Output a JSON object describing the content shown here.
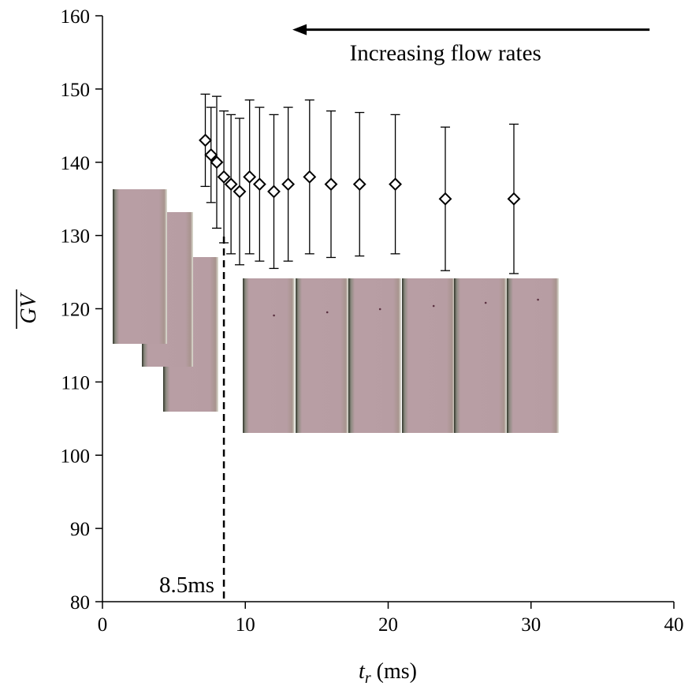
{
  "chart_data": {
    "type": "scatter",
    "x_label": {
      "symbol": "t",
      "subscript": "r",
      "unit": " (ms)"
    },
    "y_label": "GV",
    "xlim": [
      0,
      40
    ],
    "ylim": [
      80,
      160
    ],
    "x_ticks": [
      "0",
      "10",
      "20",
      "30",
      "40"
    ],
    "x_tick_values": [
      0,
      10,
      20,
      30,
      40
    ],
    "y_ticks": [
      "80",
      "90",
      "100",
      "110",
      "120",
      "130",
      "140",
      "150",
      "160"
    ],
    "y_tick_values": [
      80,
      90,
      100,
      110,
      120,
      130,
      140,
      150,
      160
    ],
    "marker": "diamond-open",
    "points": [
      {
        "x": 7.2,
        "y": 143,
        "err": 6.3
      },
      {
        "x": 7.6,
        "y": 141,
        "err": 6.5
      },
      {
        "x": 8.0,
        "y": 140,
        "err": 9.0
      },
      {
        "x": 8.5,
        "y": 138,
        "err": 9.0
      },
      {
        "x": 9.0,
        "y": 137,
        "err": 9.5
      },
      {
        "x": 9.6,
        "y": 136,
        "err": 10.0
      },
      {
        "x": 10.3,
        "y": 138,
        "err": 10.5
      },
      {
        "x": 11.0,
        "y": 137,
        "err": 10.5
      },
      {
        "x": 12.0,
        "y": 136,
        "err": 10.5
      },
      {
        "x": 13.0,
        "y": 137,
        "err": 10.5
      },
      {
        "x": 14.5,
        "y": 138,
        "err": 10.5
      },
      {
        "x": 16.0,
        "y": 137,
        "err": 10.0
      },
      {
        "x": 18.0,
        "y": 137,
        "err": 9.8
      },
      {
        "x": 20.5,
        "y": 137,
        "err": 9.5
      },
      {
        "x": 24.0,
        "y": 135,
        "err": 9.8
      },
      {
        "x": 28.8,
        "y": 135,
        "err": 10.2
      }
    ],
    "threshold": {
      "x": 8.5,
      "label": "8.5ms"
    },
    "annotation": {
      "text": "Increasing flow rates",
      "arrow_from_x": 38.3,
      "arrow_to_x": 13.3,
      "arrow_y": 158.1,
      "text_x": 17.3,
      "text_y": 153.9
    },
    "tile_color": "#b69ca2"
  }
}
